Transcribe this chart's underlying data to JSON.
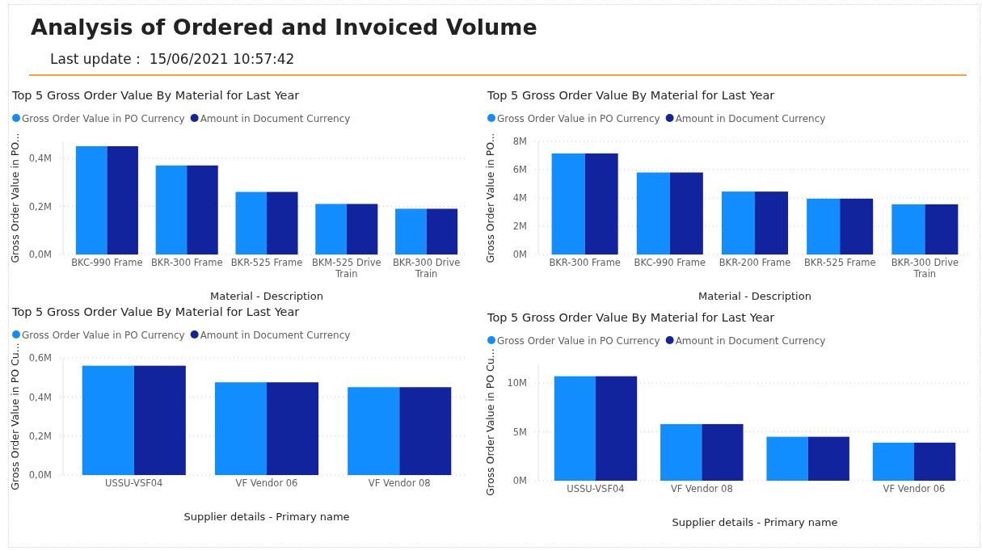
{
  "chart_data": [
    {
      "type": "other",
      "title": "Analysis of Ordered and Invoiced Volume",
      "subtitle": "Last update :  15/06/2021 10:57:42"
    },
    {
      "type": "bar",
      "title": "Top 5 Gross Order Value By Material for Last Year",
      "xlabel": "Material - Description",
      "ylabel": "Gross Order Value in PO...",
      "categories": [
        "BKC-990 Frame",
        "BKR-300 Frame",
        "BKR-525 Frame",
        "BKM-525 Drive Train",
        "BKR-300 Drive Train"
      ],
      "series": [
        {
          "name": "Gross Order Value in PO Currency",
          "color": "#118dff",
          "values": [
            0.45,
            0.37,
            0.26,
            0.21,
            0.19
          ]
        },
        {
          "name": "Amount in Document Currency",
          "color": "#12239e",
          "values": [
            0.45,
            0.37,
            0.26,
            0.21,
            0.19
          ]
        }
      ],
      "ylim": [
        0,
        0.47
      ],
      "yticks": [
        {
          "value": 0,
          "label": "0,0M"
        },
        {
          "value": 0.2,
          "label": "0,2M"
        },
        {
          "value": 0.4,
          "label": "0,4M"
        }
      ],
      "grid": "y",
      "legend": "top left"
    },
    {
      "type": "bar",
      "title": "Top 5 Gross Order Value By Material for Last Year",
      "xlabel": "Material - Description",
      "ylabel": "Gross Order Value in PO...",
      "categories": [
        "BKR-300 Frame",
        "BKC-990 Frame",
        "BKR-200 Frame",
        "BKR-525 Frame",
        "BKR-300 Drive Train"
      ],
      "series": [
        {
          "name": "Gross Order Value in PO Currency",
          "color": "#118dff",
          "values": [
            7.15,
            5.8,
            4.45,
            3.95,
            3.55
          ]
        },
        {
          "name": "Amount in Document Currency",
          "color": "#12239e",
          "values": [
            7.15,
            5.8,
            4.45,
            3.95,
            3.55
          ]
        }
      ],
      "ylim": [
        0,
        8
      ],
      "yticks": [
        {
          "value": 0,
          "label": "0M"
        },
        {
          "value": 2,
          "label": "2M"
        },
        {
          "value": 4,
          "label": "4M"
        },
        {
          "value": 6,
          "label": "6M"
        },
        {
          "value": 8,
          "label": "8M"
        }
      ],
      "grid": "y",
      "legend": "top left"
    },
    {
      "type": "bar",
      "title": "Top 5 Gross Order Value By Material for Last Year",
      "xlabel": "Supplier details - Primary name",
      "ylabel": "Gross Order Value in PO Cu...",
      "categories": [
        "USSU-VSF04",
        "VF Vendor 06",
        "VF Vendor 08"
      ],
      "series": [
        {
          "name": "Gross Order Value in PO Currency",
          "color": "#118dff",
          "values": [
            0.56,
            0.475,
            0.45
          ]
        },
        {
          "name": "Amount in Document Currency",
          "color": "#12239e",
          "values": [
            0.56,
            0.475,
            0.45
          ]
        }
      ],
      "ylim": [
        0,
        0.6
      ],
      "yticks": [
        {
          "value": 0,
          "label": "0,0M"
        },
        {
          "value": 0.2,
          "label": "0,2M"
        },
        {
          "value": 0.4,
          "label": "0,4M"
        },
        {
          "value": 0.6,
          "label": "0,6M"
        }
      ],
      "grid": "y",
      "legend": "top left"
    },
    {
      "type": "bar",
      "title": "Top 5 Gross Order Value By Material for Last Year",
      "xlabel": "Supplier details - Primary name",
      "ylabel": "Gross Order Value in PO Cu...",
      "categories": [
        "USSU-VSF04",
        "VF Vendor 08",
        null,
        "VF Vendor 06"
      ],
      "series": [
        {
          "name": "Gross Order Value in PO Currency",
          "color": "#118dff",
          "values": [
            10.7,
            5.8,
            4.5,
            3.9
          ]
        },
        {
          "name": "Amount in Document Currency",
          "color": "#12239e",
          "values": [
            10.7,
            5.8,
            4.5,
            3.9
          ]
        }
      ],
      "ylim": [
        0,
        12
      ],
      "yticks": [
        {
          "value": 0,
          "label": "0M"
        },
        {
          "value": 5,
          "label": "5M"
        },
        {
          "value": 10,
          "label": "10M"
        }
      ],
      "grid": "y",
      "legend": "top left"
    }
  ]
}
